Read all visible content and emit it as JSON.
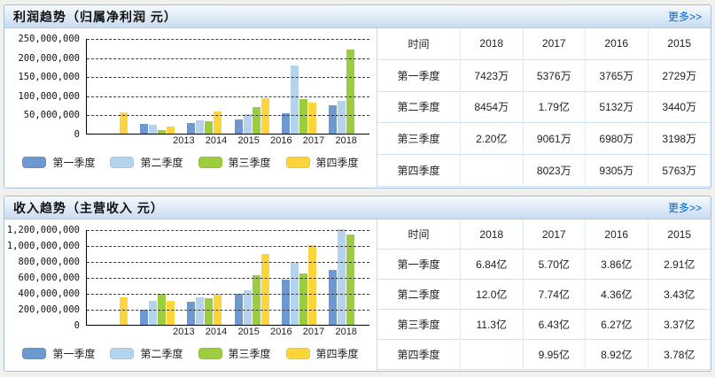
{
  "panels": [
    {
      "title": "利润趋势（归属净利润  元）",
      "more_label": "更多>>",
      "chart_data": {
        "type": "bar",
        "title": "利润趋势（归属净利润 元）",
        "ylabel": "元",
        "categories": [
          "2013",
          "2014",
          "2015",
          "2016",
          "2017",
          "2018"
        ],
        "series": [
          {
            "name": "第一季度",
            "color": "#6e99d0",
            "values": [
              null,
              25000000,
              27290000,
              37650000,
              53760000,
              74230000
            ]
          },
          {
            "name": "第二季度",
            "color": "#b4d4ee",
            "values": [
              null,
              23000000,
              34400000,
              51320000,
              179000000,
              84540000
            ]
          },
          {
            "name": "第三季度",
            "color": "#9ccd3e",
            "values": [
              null,
              9000000,
              31980000,
              69800000,
              90610000,
              220000000
            ]
          },
          {
            "name": "第四季度",
            "color": "#fcd53d",
            "values": [
              56000000,
              19000000,
              57630000,
              93050000,
              80230000,
              null
            ]
          }
        ],
        "ylim": [
          0,
          250000000
        ],
        "ytick": 50000000,
        "grid": "dashed",
        "legend_position": "bottom"
      },
      "table": {
        "header": [
          "时间",
          "2018",
          "2017",
          "2016",
          "2015"
        ],
        "rows": [
          {
            "label": "第一季度",
            "values": [
              "7423万",
              "5376万",
              "3765万",
              "2729万"
            ]
          },
          {
            "label": "第二季度",
            "values": [
              "8454万",
              "1.79亿",
              "5132万",
              "3440万"
            ]
          },
          {
            "label": "第三季度",
            "values": [
              "2.20亿",
              "9061万",
              "6980万",
              "3198万"
            ]
          },
          {
            "label": "第四季度",
            "values": [
              "",
              "8023万",
              "9305万",
              "5763万"
            ]
          }
        ]
      }
    },
    {
      "title": "收入趋势（主营收入  元）",
      "more_label": "更多>>",
      "chart_data": {
        "type": "bar",
        "title": "收入趋势（主营收入 元）",
        "ylabel": "元",
        "categories": [
          "2013",
          "2014",
          "2015",
          "2016",
          "2017",
          "2018"
        ],
        "series": [
          {
            "name": "第一季度",
            "color": "#6e99d0",
            "values": [
              null,
              190000000,
              291000000,
              386000000,
              570000000,
              684000000
            ]
          },
          {
            "name": "第二季度",
            "color": "#b4d4ee",
            "values": [
              null,
              300000000,
              343000000,
              436000000,
              774000000,
              1200000000
            ]
          },
          {
            "name": "第三季度",
            "color": "#9ccd3e",
            "values": [
              null,
              390000000,
              337000000,
              627000000,
              643000000,
              1130000000
            ]
          },
          {
            "name": "第四季度",
            "color": "#fcd53d",
            "values": [
              340000000,
              300000000,
              378000000,
              892000000,
              995000000,
              null
            ]
          }
        ],
        "ylim": [
          0,
          1200000000
        ],
        "ytick": 200000000,
        "grid": "dashed",
        "legend_position": "bottom"
      },
      "table": {
        "header": [
          "时间",
          "2018",
          "2017",
          "2016",
          "2015"
        ],
        "rows": [
          {
            "label": "第一季度",
            "values": [
              "6.84亿",
              "5.70亿",
              "3.86亿",
              "2.91亿"
            ]
          },
          {
            "label": "第二季度",
            "values": [
              "12.0亿",
              "7.74亿",
              "4.36亿",
              "3.43亿"
            ]
          },
          {
            "label": "第三季度",
            "values": [
              "11.3亿",
              "6.43亿",
              "6.27亿",
              "3.37亿"
            ]
          },
          {
            "label": "第四季度",
            "values": [
              "",
              "9.95亿",
              "8.92亿",
              "3.78亿"
            ]
          }
        ]
      }
    }
  ]
}
